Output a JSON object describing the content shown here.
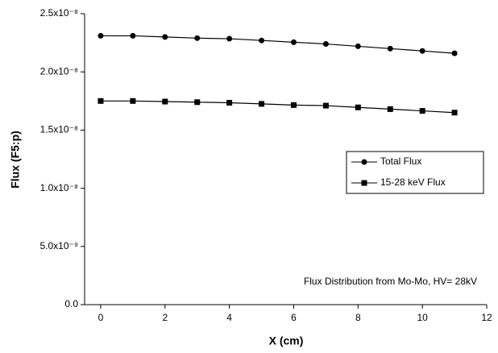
{
  "chart_data": {
    "type": "line",
    "x_label": "X (cm)",
    "y_label": "Flux (F5:p)",
    "annotation": "Flux Distribution from Mo-Mo, HV= 28kV",
    "x": [
      0,
      1,
      2,
      3,
      4,
      5,
      6,
      7,
      8,
      9,
      10,
      11
    ],
    "series": [
      {
        "name": "Total Flux",
        "color": "#000000",
        "marker": "circle",
        "values": [
          2.31e-08,
          2.31e-08,
          2.3e-08,
          2.29e-08,
          2.285e-08,
          2.27e-08,
          2.255e-08,
          2.24e-08,
          2.22e-08,
          2.2e-08,
          2.18e-08,
          2.16e-08
        ]
      },
      {
        "name": "15-28 keV Flux",
        "color": "#000000",
        "marker": "square",
        "values": [
          1.75e-08,
          1.75e-08,
          1.745e-08,
          1.74e-08,
          1.735e-08,
          1.725e-08,
          1.715e-08,
          1.71e-08,
          1.695e-08,
          1.68e-08,
          1.665e-08,
          1.65e-08
        ]
      }
    ],
    "xlim": [
      -0.5,
      12
    ],
    "xticks": [
      0,
      2,
      4,
      6,
      8,
      10,
      12
    ],
    "ylim": [
      0,
      2.5e-08
    ],
    "yticks": [
      {
        "value": 0,
        "label": "0.0"
      },
      {
        "value": 5e-09,
        "label": "5.0x10⁻⁹"
      },
      {
        "value": 1e-08,
        "label": "1.0x10⁻⁸"
      },
      {
        "value": 1.5e-08,
        "label": "1.5x10⁻⁸"
      },
      {
        "value": 2e-08,
        "label": "2.0x10⁻⁸"
      },
      {
        "value": 2.5e-08,
        "label": "2.5x10⁻⁸"
      }
    ],
    "legend": "right"
  }
}
